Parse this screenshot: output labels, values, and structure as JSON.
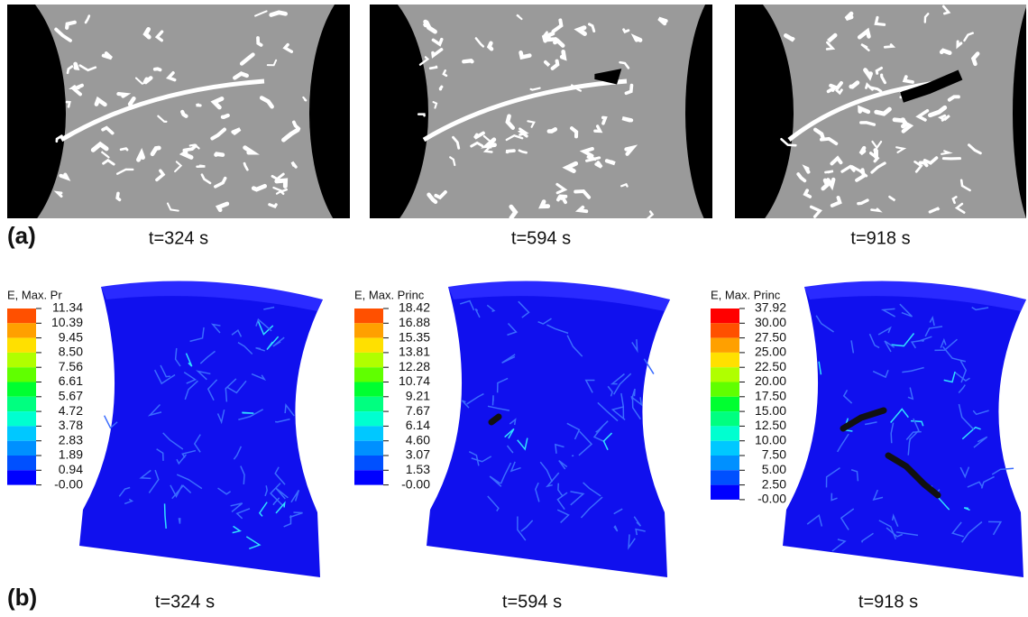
{
  "panel_a": {
    "label": "(a)",
    "frames": [
      {
        "time": "t=324 s"
      },
      {
        "time": "t=594 s"
      },
      {
        "time": "t=918 s"
      }
    ]
  },
  "panel_b": {
    "label": "(b)",
    "frames": [
      {
        "time": "t=324 s",
        "legend": {
          "title": "E, Max. Pr",
          "levels": [
            "11.34",
            "10.39",
            "9.45",
            "8.50",
            "7.56",
            "6.61",
            "5.67",
            "4.72",
            "3.78",
            "2.83",
            "1.89",
            "0.94",
            "-0.00"
          ]
        }
      },
      {
        "time": "t=594 s",
        "legend": {
          "title": "E, Max. Princ",
          "levels": [
            "18.42",
            "16.88",
            "15.35",
            "13.81",
            "12.28",
            "10.74",
            "9.21",
            "7.67",
            "6.14",
            "4.60",
            "3.07",
            "1.53",
            "-0.00"
          ]
        }
      },
      {
        "time": "t=918 s",
        "legend": {
          "title": "E, Max. Princ",
          "levels": [
            "37.92",
            "30.00",
            "27.50",
            "25.00",
            "22.50",
            "20.00",
            "17.50",
            "15.00",
            "12.50",
            "10.00",
            "7.50",
            "5.00",
            "2.50",
            "-0.00"
          ]
        }
      }
    ]
  }
}
